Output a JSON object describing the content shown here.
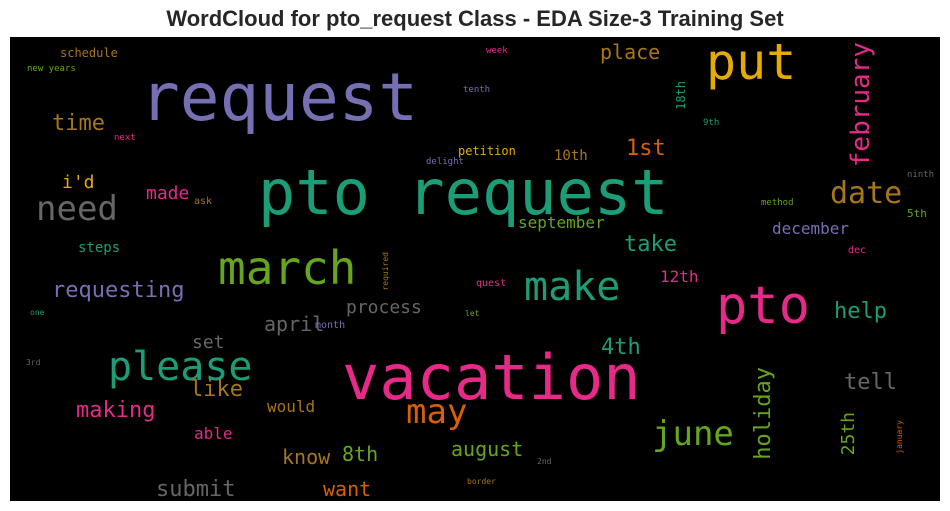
{
  "title": "WordCloud for pto_request Class - EDA Size-3 Training Set",
  "chart_data": {
    "type": "wordcloud",
    "title": "WordCloud for pto_request Class - EDA Size-3 Training Set",
    "background": "#000000",
    "colors": [
      "#7570b3",
      "#1b9e77",
      "#e7298a",
      "#66a61e",
      "#e6ab02",
      "#a6761d",
      "#666666",
      "#d95f02"
    ],
    "words": [
      {
        "text": "request",
        "weight": 100,
        "color": "#7570b3"
      },
      {
        "text": "pto request",
        "weight": 88,
        "color": "#1b9e77"
      },
      {
        "text": "vacation",
        "weight": 86,
        "color": "#e7298a"
      },
      {
        "text": "pto",
        "weight": 80,
        "color": "#e7298a"
      },
      {
        "text": "put",
        "weight": 72,
        "color": "#e6ab02"
      },
      {
        "text": "march",
        "weight": 62,
        "color": "#66a61e"
      },
      {
        "text": "please",
        "weight": 60,
        "color": "#1b9e77"
      },
      {
        "text": "make",
        "weight": 58,
        "color": "#1b9e77"
      },
      {
        "text": "need",
        "weight": 52,
        "color": "#666666"
      },
      {
        "text": "may",
        "weight": 50,
        "color": "#d95f02"
      },
      {
        "text": "june",
        "weight": 50,
        "color": "#66a61e"
      },
      {
        "text": "date",
        "weight": 44,
        "color": "#a6761d"
      },
      {
        "text": "february",
        "weight": 40,
        "color": "#e7298a"
      },
      {
        "text": "holiday",
        "weight": 34,
        "color": "#66a61e"
      },
      {
        "text": "time",
        "weight": 32,
        "color": "#a6761d"
      },
      {
        "text": "place",
        "weight": 30,
        "color": "#a6761d"
      },
      {
        "text": "requesting",
        "weight": 32,
        "color": "#7570b3"
      },
      {
        "text": "take",
        "weight": 30,
        "color": "#1b9e77"
      },
      {
        "text": "making",
        "weight": 30,
        "color": "#e7298a"
      },
      {
        "text": "april",
        "weight": 30,
        "color": "#666666"
      },
      {
        "text": "help",
        "weight": 30,
        "color": "#1b9e77"
      },
      {
        "text": "tell",
        "weight": 30,
        "color": "#666666"
      },
      {
        "text": "submit",
        "weight": 30,
        "color": "#666666"
      },
      {
        "text": "1st",
        "weight": 28,
        "color": "#d95f02"
      },
      {
        "text": "4th",
        "weight": 28,
        "color": "#1b9e77"
      },
      {
        "text": "know",
        "weight": 28,
        "color": "#a6761d"
      },
      {
        "text": "like",
        "weight": 28,
        "color": "#a6761d"
      },
      {
        "text": "want",
        "weight": 26,
        "color": "#d95f02"
      },
      {
        "text": "august",
        "weight": 26,
        "color": "#66a61e"
      },
      {
        "text": "8th",
        "weight": 26,
        "color": "#66a61e"
      },
      {
        "text": "25th",
        "weight": 24,
        "color": "#66a61e"
      },
      {
        "text": "set",
        "weight": 24,
        "color": "#666666"
      },
      {
        "text": "process",
        "weight": 24,
        "color": "#666666"
      },
      {
        "text": "made",
        "weight": 22,
        "color": "#e7298a"
      },
      {
        "text": "i'd",
        "weight": 20,
        "color": "#e6ab02"
      },
      {
        "text": "december",
        "weight": 20,
        "color": "#7570b3"
      },
      {
        "text": "september",
        "weight": 20,
        "color": "#66a61e"
      },
      {
        "text": "12th",
        "weight": 20,
        "color": "#e7298a"
      },
      {
        "text": "would",
        "weight": 20,
        "color": "#a6761d"
      },
      {
        "text": "able",
        "weight": 20,
        "color": "#e7298a"
      },
      {
        "text": "10th",
        "weight": 18,
        "color": "#a6761d"
      },
      {
        "text": "steps",
        "weight": 16,
        "color": "#1b9e77"
      },
      {
        "text": "18th",
        "weight": 16,
        "color": "#1b9e77"
      },
      {
        "text": "schedule",
        "weight": 14,
        "color": "#a6761d"
      },
      {
        "text": "petition",
        "weight": 14,
        "color": "#e6ab02"
      },
      {
        "text": "month",
        "weight": 12,
        "color": "#7570b3"
      },
      {
        "text": "quest",
        "weight": 12,
        "color": "#e7298a"
      },
      {
        "text": "5th",
        "weight": 12,
        "color": "#66a61e"
      },
      {
        "text": "ask",
        "weight": 12,
        "color": "#a6761d"
      },
      {
        "text": "delight",
        "weight": 10,
        "color": "#7570b3"
      },
      {
        "text": "tenth",
        "weight": 10,
        "color": "#7570b3"
      },
      {
        "text": "week",
        "weight": 10,
        "color": "#e7298a"
      },
      {
        "text": "new years",
        "weight": 10,
        "color": "#66a61e"
      },
      {
        "text": "next",
        "weight": 10,
        "color": "#e7298a"
      },
      {
        "text": "9th",
        "weight": 10,
        "color": "#1b9e77"
      },
      {
        "text": "ninth",
        "weight": 10,
        "color": "#666666"
      },
      {
        "text": "method",
        "weight": 10,
        "color": "#66a61e"
      },
      {
        "text": "dec",
        "weight": 10,
        "color": "#e7298a"
      },
      {
        "text": "required",
        "weight": 8,
        "color": "#a6761d"
      },
      {
        "text": "one",
        "weight": 8,
        "color": "#1b9e77"
      },
      {
        "text": "let",
        "weight": 8,
        "color": "#66a61e"
      },
      {
        "text": "3rd",
        "weight": 8,
        "color": "#666666"
      },
      {
        "text": "2nd",
        "weight": 8,
        "color": "#666666"
      },
      {
        "text": "border",
        "weight": 8,
        "color": "#a6761d"
      },
      {
        "text": "january",
        "weight": 8,
        "color": "#d95f02"
      }
    ]
  }
}
